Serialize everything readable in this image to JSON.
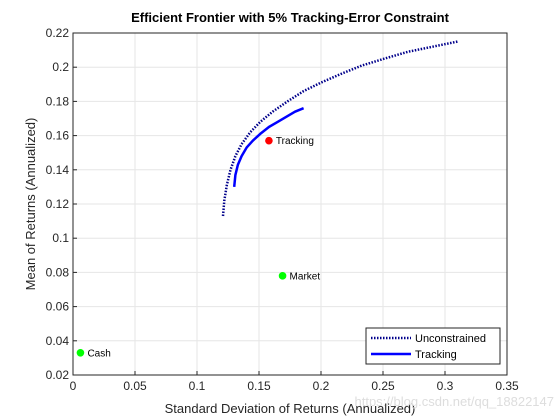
{
  "chart_data": {
    "type": "line",
    "title": "Efficient Frontier with 5% Tracking-Error Constraint",
    "xlabel": "Standard Deviation of Returns (Annualized)",
    "ylabel": "Mean of Returns (Annualized)",
    "xlim": [
      0,
      0.35
    ],
    "ylim": [
      0.02,
      0.22
    ],
    "xticks": [
      "0",
      "0.05",
      "0.1",
      "0.15",
      "0.2",
      "0.25",
      "0.3",
      "0.35"
    ],
    "yticks": [
      "0.02",
      "0.04",
      "0.06",
      "0.08",
      "0.1",
      "0.12",
      "0.14",
      "0.16",
      "0.18",
      "0.2",
      "0.22"
    ],
    "grid": true,
    "legend_position": "bottom-right",
    "series": [
      {
        "name": "Unconstrained",
        "color": "#00008B",
        "style": "dotted",
        "x": [
          0.121,
          0.122,
          0.124,
          0.127,
          0.131,
          0.136,
          0.143,
          0.151,
          0.161,
          0.173,
          0.186,
          0.2,
          0.216,
          0.233,
          0.251,
          0.27,
          0.29,
          0.31
        ],
        "y": [
          0.113,
          0.122,
          0.131,
          0.14,
          0.148,
          0.155,
          0.162,
          0.168,
          0.174,
          0.18,
          0.186,
          0.191,
          0.196,
          0.201,
          0.205,
          0.209,
          0.212,
          0.215
        ]
      },
      {
        "name": "Tracking",
        "color": "#0000FF",
        "style": "solid",
        "x": [
          0.13,
          0.131,
          0.133,
          0.136,
          0.14,
          0.145,
          0.151,
          0.158,
          0.165,
          0.172,
          0.179,
          0.186
        ],
        "y": [
          0.13,
          0.137,
          0.143,
          0.148,
          0.153,
          0.157,
          0.161,
          0.165,
          0.168,
          0.171,
          0.174,
          0.176
        ]
      }
    ],
    "points": [
      {
        "label": "Tracking",
        "x": 0.158,
        "y": 0.157,
        "color": "#FF0000"
      },
      {
        "label": "Market",
        "x": 0.169,
        "y": 0.078,
        "color": "#00FF00"
      },
      {
        "label": "Cash",
        "x": 0.006,
        "y": 0.033,
        "color": "#00FF00"
      }
    ]
  },
  "watermark": "https://blog.csdn.net/qq_18822147"
}
